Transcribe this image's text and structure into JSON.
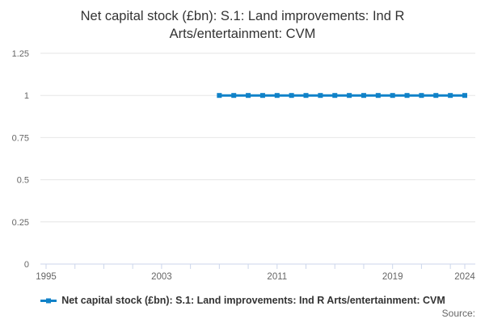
{
  "title_lines": [
    "Net capital stock (£bn): S.1: Land improvements: Ind R",
    "Arts/entertainment: CVM"
  ],
  "legend": {
    "label": "Net capital stock (£bn): S.1: Land improvements: Ind R Arts/entertainment: CVM"
  },
  "source_label": "Source:",
  "colors": {
    "series": "#1082C8",
    "gridline": "#E6E6E6",
    "axis_line": "#CCD6EB",
    "tick": "#CCD6EB",
    "axis_label": "#666666",
    "title_text": "#333333",
    "legend_text": "#333333",
    "source_text": "#666666",
    "background": "#FFFFFF"
  },
  "chart_data": {
    "type": "line",
    "title": "Net capital stock (£bn): S.1: Land improvements: Ind R Arts/entertainment: CVM",
    "series": [
      {
        "name": "Net capital stock (£bn): S.1: Land improvements: Ind R Arts/entertainment: CVM",
        "x": [
          2007,
          2008,
          2009,
          2010,
          2011,
          2012,
          2013,
          2014,
          2015,
          2016,
          2017,
          2018,
          2019,
          2020,
          2021,
          2022,
          2023,
          2024
        ],
        "values": [
          1,
          1,
          1,
          1,
          1,
          1,
          1,
          1,
          1,
          1,
          1,
          1,
          1,
          1,
          1,
          1,
          1,
          1
        ]
      }
    ],
    "xlabel": "",
    "ylabel": "",
    "ylim": [
      0,
      1.25
    ],
    "yticks": [
      0,
      0.25,
      0.5,
      0.75,
      1,
      1.25
    ],
    "ytick_labels": [
      "0",
      "0.25",
      "0.5",
      "0.75",
      "1",
      "1.25"
    ],
    "xlim": [
      1994.6,
      2024.8
    ],
    "xticks_minor": [
      1995,
      1997,
      1999,
      2001,
      2003,
      2005,
      2007,
      2009,
      2011,
      2013,
      2015,
      2017,
      2019,
      2021,
      2023,
      2024
    ],
    "xticks_labeled": [
      1995,
      2003,
      2011,
      2019,
      2024
    ],
    "xtick_labels": [
      "1995",
      "2003",
      "2011",
      "2019",
      "2024"
    ],
    "grid": "horizontal",
    "legend_position": "bottom",
    "marker": "square"
  }
}
